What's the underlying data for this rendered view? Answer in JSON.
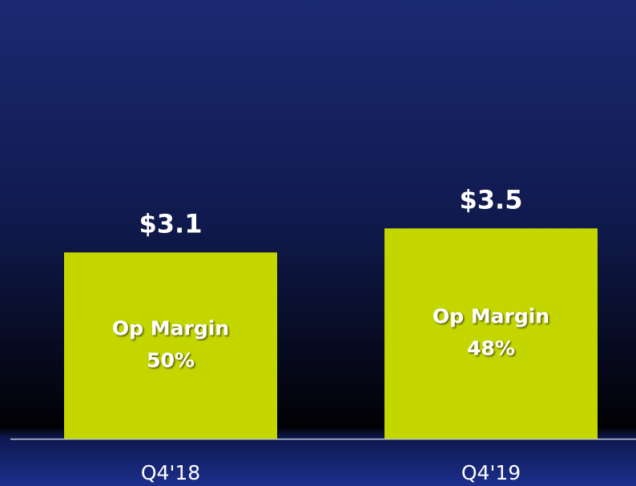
{
  "chart_data": {
    "type": "bar",
    "categories": [
      "Q4'18",
      "Q4'19"
    ],
    "values": [
      3.1,
      3.5
    ],
    "value_labels": [
      "$3.1",
      "$3.5"
    ],
    "annotations": [
      {
        "lines": [
          "Op Margin",
          "50%"
        ]
      },
      {
        "lines": [
          "Op Margin",
          "48%"
        ]
      }
    ],
    "color": "#c4d600",
    "ylim": [
      0,
      7.3
    ]
  }
}
